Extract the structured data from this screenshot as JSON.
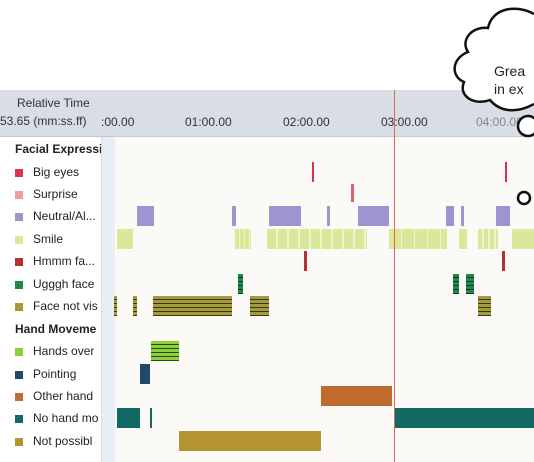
{
  "header": {
    "title_line1": "Relative Time",
    "title_line2": "53.65 (mm:ss.ff)"
  },
  "ticks": [
    ":00.00",
    "01:00.00",
    "02:00.00",
    "03:00.00",
    "04:00.00"
  ],
  "groups": [
    {
      "label": "Facial Expressi"
    },
    {
      "label": "Hand Moveme"
    }
  ],
  "rows": [
    {
      "label": "Big eyes",
      "color": "#d9344e"
    },
    {
      "label": "Surprise",
      "color": "#f09aa4"
    },
    {
      "label": "Neutral/Al...",
      "color": "#9f94d0"
    },
    {
      "label": "Smile",
      "color": "#d9e89a"
    },
    {
      "label": "Hmmm fa...",
      "color": "#b33333"
    },
    {
      "label": "Ugggh face",
      "color": "#1f8a4c"
    },
    {
      "label": "Face not vis",
      "color": "#a39a3c"
    },
    {
      "label": "Hands over",
      "color": "#8ecf3c"
    },
    {
      "label": "Pointing",
      "color": "#204a6c"
    },
    {
      "label": "Other hand",
      "color": "#c06a30"
    },
    {
      "label": "No hand mo",
      "color": "#136a64"
    },
    {
      "label": "Not possibl",
      "color": "#b3942e"
    }
  ],
  "bubble": {
    "line1": "Grea",
    "line2": "in ex"
  }
}
